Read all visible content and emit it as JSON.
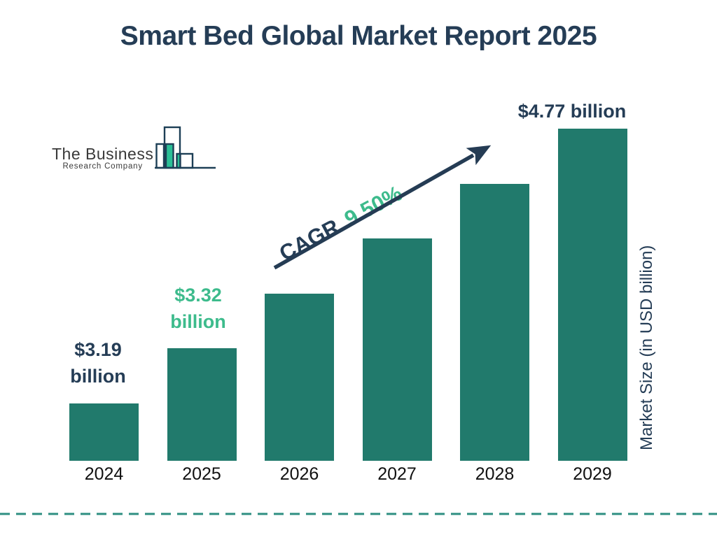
{
  "page_title": "Smart Bed Global Market Report 2025",
  "logo": {
    "company_line1": "The Business",
    "company_line2": "Research Company"
  },
  "cagr": {
    "prefix": "CAGR",
    "value": "9.50%"
  },
  "bar_labels": {
    "y2024": {
      "line1": "$3.19",
      "line2": "billion"
    },
    "y2025": {
      "line1": "$3.32",
      "line2": "billion"
    },
    "y2029": {
      "line": "$4.77 billion"
    }
  },
  "y_axis": {
    "label": "Market Size (in USD billion)"
  },
  "colors": {
    "bar": "#217a6c",
    "navy": "#253d56",
    "green": "#3dbb8c",
    "divider": "#2e8f81",
    "arrow": "#253c54",
    "logo_teal": "#2bbf96",
    "logo_outline": "#1d3f56"
  },
  "chart_data": {
    "type": "bar",
    "title": "Smart Bed Global Market Report 2025",
    "categories": [
      "2024",
      "2025",
      "2026",
      "2027",
      "2028",
      "2029"
    ],
    "values": [
      3.19,
      3.32,
      3.64,
      3.98,
      4.36,
      4.77
    ],
    "data_labels": [
      "$3.19 billion",
      "$3.32 billion",
      "",
      "",
      "",
      "$4.77 billion"
    ],
    "cagr": "9.50%",
    "xlabel": "",
    "ylabel": "Market Size (in USD billion)",
    "ylim": [
      0,
      5
    ],
    "grid": false,
    "legend": false,
    "bar_color": "#217a6c"
  }
}
